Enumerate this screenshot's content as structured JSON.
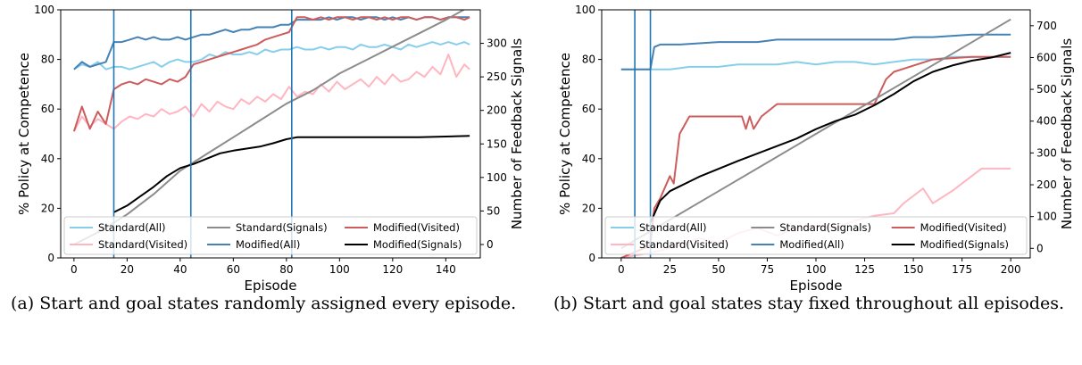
{
  "captions": [
    "(a) Start and goal states randomly assigned every episode.",
    "(b) Start and goal states stay fixed throughout all episodes."
  ],
  "colors": {
    "standard_all": "#87ceeb",
    "modified_all": "#4682b4",
    "standard_visited": "#ffb6c1",
    "modified_visited": "#cd5c5c",
    "standard_signals": "#8c8c8c",
    "modified_signals": "#000000",
    "vline": "#1f77b4"
  },
  "chart_data": [
    {
      "type": "line",
      "title": "",
      "xlabel": "Episode",
      "ylabel": "% Policy at Competence",
      "ylabel_right": "Number of Feedback Signals",
      "xlim": [
        -5,
        153
      ],
      "ylim": [
        0,
        100
      ],
      "ylim_right": [
        -20,
        350
      ],
      "xticks": [
        0,
        20,
        40,
        60,
        80,
        100,
        120,
        140
      ],
      "yticks": [
        0,
        20,
        40,
        60,
        80,
        100
      ],
      "yticks_right": [
        0,
        50,
        100,
        150,
        200,
        250,
        300
      ],
      "vertical_lines_x": [
        15,
        44,
        82
      ],
      "legend": {
        "location": "bottom",
        "columns": 3
      },
      "series": [
        {
          "name": "Standard(All)",
          "axis": "left",
          "color": "#87ceeb",
          "x": [
            0,
            3,
            6,
            9,
            12,
            15,
            18,
            21,
            24,
            27,
            30,
            33,
            36,
            39,
            42,
            45,
            48,
            51,
            54,
            57,
            60,
            63,
            66,
            69,
            72,
            75,
            78,
            81,
            84,
            87,
            90,
            93,
            96,
            99,
            102,
            105,
            108,
            111,
            114,
            117,
            120,
            123,
            126,
            129,
            132,
            135,
            138,
            141,
            144,
            147,
            149
          ],
          "y": [
            76,
            78,
            77,
            79,
            76,
            77,
            77,
            76,
            77,
            78,
            79,
            77,
            79,
            80,
            79,
            79,
            80,
            82,
            81,
            83,
            82,
            82,
            83,
            82,
            84,
            83,
            84,
            84,
            85,
            84,
            84,
            85,
            84,
            85,
            85,
            84,
            86,
            85,
            85,
            86,
            85,
            84,
            86,
            85,
            86,
            87,
            86,
            87,
            86,
            87,
            86
          ]
        },
        {
          "name": "Modified(All)",
          "axis": "left",
          "color": "#4682b4",
          "x": [
            0,
            3,
            6,
            9,
            12,
            15,
            18,
            21,
            24,
            27,
            30,
            33,
            36,
            39,
            42,
            45,
            48,
            51,
            54,
            57,
            60,
            63,
            66,
            69,
            72,
            75,
            78,
            81,
            84,
            87,
            90,
            93,
            96,
            99,
            102,
            105,
            108,
            111,
            114,
            117,
            120,
            123,
            126,
            129,
            132,
            135,
            138,
            141,
            144,
            147,
            149
          ],
          "y": [
            76,
            79,
            77,
            78,
            79,
            87,
            87,
            88,
            89,
            88,
            89,
            88,
            88,
            89,
            88,
            89,
            90,
            90,
            91,
            92,
            91,
            92,
            92,
            93,
            93,
            93,
            94,
            94,
            96,
            96,
            96,
            96,
            97,
            96,
            97,
            97,
            96,
            97,
            97,
            96,
            97,
            96,
            97,
            96,
            97,
            97,
            96,
            97,
            97,
            97,
            97
          ]
        },
        {
          "name": "Standard(Visited)",
          "axis": "left",
          "color": "#ffb6c1",
          "x": [
            0,
            3,
            6,
            9,
            12,
            15,
            18,
            21,
            24,
            27,
            30,
            33,
            36,
            39,
            42,
            45,
            48,
            51,
            54,
            57,
            60,
            63,
            66,
            69,
            72,
            75,
            78,
            81,
            84,
            87,
            90,
            93,
            96,
            99,
            102,
            105,
            108,
            111,
            114,
            117,
            120,
            123,
            126,
            129,
            132,
            135,
            138,
            141,
            144,
            147,
            149
          ],
          "y": [
            51,
            57,
            53,
            56,
            54,
            52,
            55,
            57,
            56,
            58,
            57,
            60,
            58,
            59,
            61,
            57,
            62,
            59,
            63,
            61,
            60,
            64,
            62,
            65,
            63,
            66,
            64,
            69,
            65,
            67,
            66,
            70,
            67,
            71,
            68,
            70,
            72,
            69,
            73,
            70,
            74,
            71,
            72,
            75,
            73,
            77,
            74,
            82,
            73,
            78,
            76
          ]
        },
        {
          "name": "Modified(Visited)",
          "axis": "left",
          "color": "#cd5c5c",
          "x": [
            0,
            3,
            6,
            9,
            12,
            15,
            18,
            21,
            24,
            27,
            30,
            33,
            36,
            39,
            42,
            45,
            48,
            51,
            54,
            57,
            60,
            63,
            66,
            69,
            72,
            75,
            78,
            81,
            84,
            87,
            90,
            93,
            96,
            99,
            102,
            105,
            108,
            111,
            114,
            117,
            120,
            123,
            126,
            129,
            132,
            135,
            138,
            141,
            144,
            147,
            149
          ],
          "y": [
            51,
            61,
            52,
            59,
            54,
            68,
            70,
            71,
            70,
            72,
            71,
            70,
            72,
            71,
            73,
            78,
            79,
            80,
            81,
            82,
            83,
            84,
            85,
            86,
            88,
            89,
            90,
            91,
            97,
            97,
            96,
            97,
            96,
            97,
            97,
            96,
            97,
            97,
            96,
            97,
            96,
            97,
            97,
            96,
            97,
            97,
            96,
            97,
            97,
            96,
            97
          ]
        },
        {
          "name": "Standard(Signals)",
          "axis": "right",
          "color": "#8c8c8c",
          "x": [
            0,
            10,
            20,
            30,
            40,
            50,
            60,
            70,
            80,
            90,
            100,
            110,
            120,
            130,
            140,
            149
          ],
          "y": [
            0,
            20,
            45,
            75,
            110,
            135,
            160,
            185,
            210,
            230,
            255,
            275,
            295,
            315,
            335,
            355
          ]
        },
        {
          "name": "Modified(Signals)",
          "axis": "right",
          "color": "#000000",
          "x": [
            15,
            20,
            25,
            30,
            35,
            40,
            45,
            50,
            55,
            60,
            65,
            70,
            75,
            80,
            84,
            90,
            100,
            110,
            120,
            130,
            140,
            149
          ],
          "y": [
            48,
            58,
            72,
            86,
            102,
            114,
            120,
            128,
            136,
            140,
            143,
            146,
            151,
            157,
            160,
            160,
            160,
            160,
            160,
            160,
            161,
            162
          ]
        }
      ]
    },
    {
      "type": "line",
      "title": "",
      "xlabel": "Episode",
      "ylabel": "% Policy at Competence",
      "ylabel_right": "Number of Feedback Signals",
      "xlim": [
        -10,
        210
      ],
      "ylim": [
        0,
        100
      ],
      "ylim_right": [
        -30,
        750
      ],
      "xticks": [
        0,
        25,
        50,
        75,
        100,
        125,
        150,
        175,
        200
      ],
      "yticks": [
        0,
        20,
        40,
        60,
        80,
        100
      ],
      "yticks_right": [
        0,
        100,
        200,
        300,
        400,
        500,
        600,
        700
      ],
      "vertical_lines_x": [
        7,
        15
      ],
      "legend": {
        "location": "bottom",
        "columns": 3
      },
      "series": [
        {
          "name": "Standard(All)",
          "axis": "left",
          "color": "#87ceeb",
          "x": [
            0,
            15,
            20,
            25,
            35,
            50,
            60,
            70,
            80,
            90,
            100,
            110,
            120,
            130,
            140,
            150,
            160,
            170,
            180,
            190,
            200
          ],
          "y": [
            76,
            76,
            76,
            76,
            77,
            77,
            78,
            78,
            78,
            79,
            78,
            79,
            79,
            78,
            79,
            80,
            80,
            81,
            81,
            81,
            81
          ]
        },
        {
          "name": "Modified(All)",
          "axis": "left",
          "color": "#4682b4",
          "x": [
            0,
            15,
            17,
            20,
            25,
            30,
            50,
            60,
            70,
            80,
            100,
            120,
            140,
            150,
            160,
            180,
            200
          ],
          "y": [
            76,
            76,
            85,
            86,
            86,
            86,
            87,
            87,
            87,
            88,
            88,
            88,
            88,
            89,
            89,
            90,
            90
          ]
        },
        {
          "name": "Standard(Visited)",
          "axis": "left",
          "color": "#ffb6c1",
          "x": [
            0,
            15,
            20,
            30,
            40,
            50,
            60,
            70,
            80,
            90,
            100,
            110,
            120,
            130,
            140,
            145,
            150,
            155,
            160,
            170,
            175,
            185,
            200
          ],
          "y": [
            0,
            2,
            3,
            5,
            8,
            6,
            10,
            12,
            9,
            12,
            13,
            12,
            15,
            17,
            18,
            22,
            25,
            28,
            22,
            27,
            30,
            36,
            36
          ]
        },
        {
          "name": "Modified(Visited)",
          "axis": "left",
          "color": "#cd5c5c",
          "x": [
            0,
            15,
            17,
            20,
            25,
            27,
            30,
            35,
            40,
            62,
            64,
            66,
            68,
            72,
            80,
            100,
            120,
            130,
            136,
            140,
            160,
            180,
            200
          ],
          "y": [
            0,
            5,
            20,
            24,
            33,
            30,
            50,
            57,
            57,
            57,
            52,
            57,
            52,
            57,
            62,
            62,
            62,
            62,
            72,
            75,
            80,
            81,
            81
          ]
        },
        {
          "name": "Standard(Signals)",
          "axis": "right",
          "color": "#8c8c8c",
          "x": [
            0,
            25,
            50,
            75,
            100,
            125,
            150,
            175,
            200
          ],
          "y": [
            0,
            90,
            180,
            270,
            360,
            450,
            540,
            630,
            720
          ]
        },
        {
          "name": "Modified(Signals)",
          "axis": "right",
          "color": "#000000",
          "x": [
            15,
            20,
            25,
            30,
            40,
            50,
            60,
            75,
            90,
            100,
            110,
            120,
            130,
            140,
            150,
            160,
            170,
            180,
            190,
            200
          ],
          "y": [
            80,
            150,
            180,
            195,
            225,
            250,
            275,
            310,
            345,
            375,
            400,
            420,
            450,
            485,
            525,
            555,
            575,
            590,
            600,
            615
          ]
        }
      ]
    }
  ]
}
